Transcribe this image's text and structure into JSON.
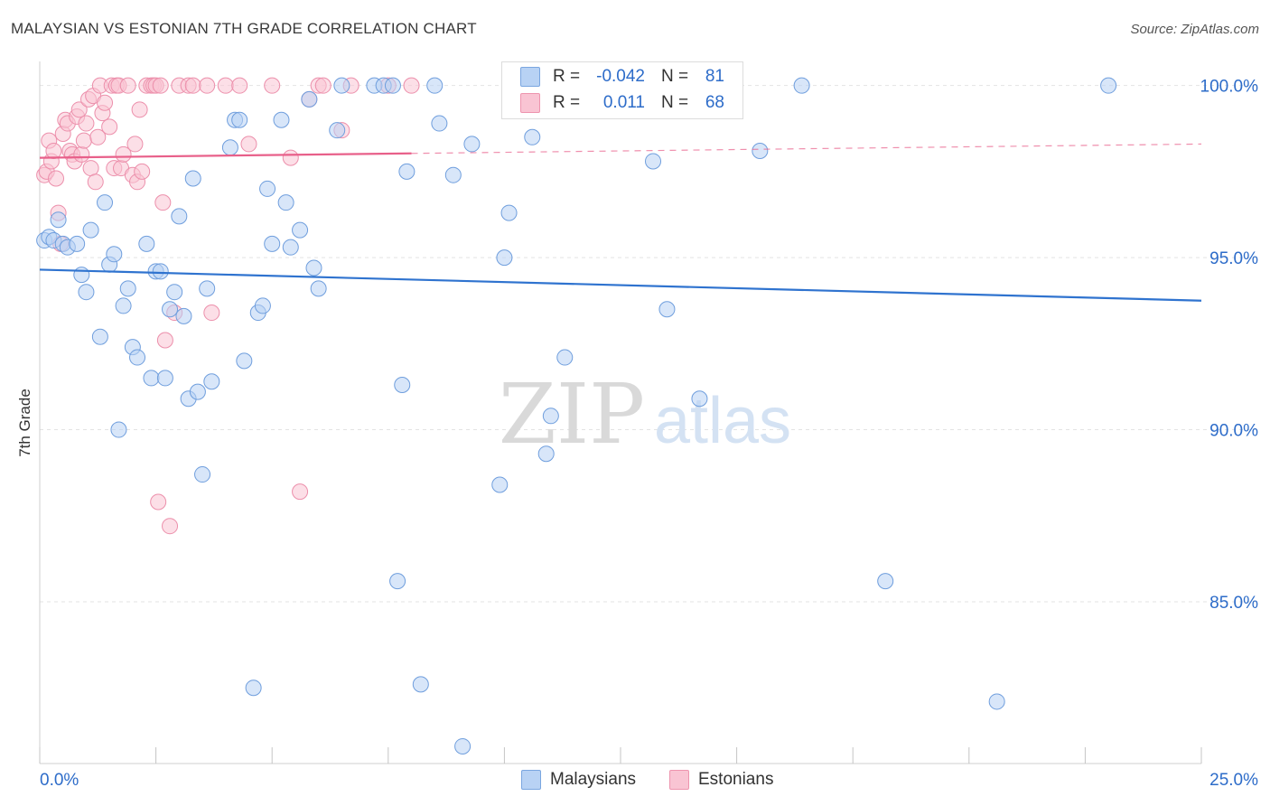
{
  "title": "MALAYSIAN VS ESTONIAN 7TH GRADE CORRELATION CHART",
  "source": "Source: ZipAtlas.com",
  "watermark": {
    "zip": "ZIP",
    "atlas": "atlas"
  },
  "legend_top": {
    "rows": [
      {
        "r_label": "R =",
        "r_value": "-0.042",
        "n_label": "N =",
        "n_value": "81"
      },
      {
        "r_label": "R =",
        "r_value": "0.011",
        "n_label": "N =",
        "n_value": "68"
      }
    ]
  },
  "legend_bottom": {
    "malaysians": "Malaysians",
    "estonians": "Estonians"
  },
  "colors": {
    "malaysians_fill": "#b8d2f4",
    "malaysians_stroke": "#6f9edd",
    "malaysians_line": "#2f73cf",
    "estonians_fill": "#f9c4d3",
    "estonians_stroke": "#ec8fab",
    "estonians_line": "#e8608a",
    "axis_label": "#2d6cc9",
    "grid": "#e3e3e3"
  },
  "chart_data": {
    "type": "scatter",
    "title": "MALAYSIAN VS ESTONIAN 7TH GRADE CORRELATION CHART",
    "xlabel": "",
    "ylabel": "7th Grade",
    "xlim": [
      0,
      25
    ],
    "ylim": [
      80.3,
      100.7
    ],
    "x_tick_labels": [
      "0.0%",
      "25.0%"
    ],
    "y_ticks": [
      85,
      90,
      95,
      100
    ],
    "y_tick_labels": [
      "85.0%",
      "90.0%",
      "95.0%",
      "100.0%"
    ],
    "grid": true,
    "series": [
      {
        "name": "Malaysians",
        "r": -0.042,
        "n": 81,
        "trend": {
          "x": [
            0,
            25
          ],
          "y": [
            94.65,
            93.75
          ]
        },
        "points": [
          [
            0.1,
            95.5
          ],
          [
            0.2,
            95.6
          ],
          [
            0.3,
            95.5
          ],
          [
            0.4,
            96.1
          ],
          [
            0.5,
            95.4
          ],
          [
            0.6,
            95.3
          ],
          [
            0.8,
            95.4
          ],
          [
            0.9,
            94.5
          ],
          [
            1.0,
            94.0
          ],
          [
            1.1,
            95.8
          ],
          [
            1.3,
            92.7
          ],
          [
            1.4,
            96.6
          ],
          [
            1.5,
            94.8
          ],
          [
            1.6,
            95.1
          ],
          [
            1.7,
            90.0
          ],
          [
            1.8,
            93.6
          ],
          [
            1.9,
            94.1
          ],
          [
            2.0,
            92.4
          ],
          [
            2.1,
            92.1
          ],
          [
            2.3,
            95.4
          ],
          [
            2.4,
            91.5
          ],
          [
            2.5,
            94.6
          ],
          [
            2.6,
            94.6
          ],
          [
            2.7,
            91.5
          ],
          [
            2.8,
            93.5
          ],
          [
            2.9,
            94.0
          ],
          [
            3.0,
            96.2
          ],
          [
            3.1,
            93.3
          ],
          [
            3.2,
            90.9
          ],
          [
            3.3,
            97.3
          ],
          [
            3.4,
            91.1
          ],
          [
            3.5,
            88.7
          ],
          [
            3.6,
            94.1
          ],
          [
            3.7,
            91.4
          ],
          [
            4.1,
            98.2
          ],
          [
            4.2,
            99.0
          ],
          [
            4.3,
            99.0
          ],
          [
            4.4,
            92.0
          ],
          [
            4.6,
            82.5
          ],
          [
            4.7,
            93.4
          ],
          [
            4.8,
            93.6
          ],
          [
            4.9,
            97.0
          ],
          [
            5.0,
            95.4
          ],
          [
            5.2,
            99.0
          ],
          [
            5.3,
            96.6
          ],
          [
            5.4,
            95.3
          ],
          [
            5.6,
            95.8
          ],
          [
            5.8,
            99.6
          ],
          [
            5.9,
            94.7
          ],
          [
            6.0,
            94.1
          ],
          [
            6.4,
            98.7
          ],
          [
            6.5,
            100.0
          ],
          [
            7.2,
            100.0
          ],
          [
            7.4,
            100.0
          ],
          [
            7.6,
            100.0
          ],
          [
            7.7,
            85.6
          ],
          [
            7.8,
            91.3
          ],
          [
            7.9,
            97.5
          ],
          [
            8.2,
            82.6
          ],
          [
            8.5,
            100.0
          ],
          [
            8.6,
            98.9
          ],
          [
            8.9,
            97.4
          ],
          [
            9.1,
            80.8
          ],
          [
            9.3,
            98.3
          ],
          [
            9.9,
            88.4
          ],
          [
            10.0,
            95.0
          ],
          [
            10.1,
            96.3
          ],
          [
            10.6,
            98.5
          ],
          [
            10.9,
            89.3
          ],
          [
            11.0,
            90.4
          ],
          [
            11.3,
            92.1
          ],
          [
            11.5,
            100.0
          ],
          [
            13.2,
            97.8
          ],
          [
            13.5,
            93.5
          ],
          [
            13.8,
            100.0
          ],
          [
            14.2,
            90.9
          ],
          [
            15.5,
            98.1
          ],
          [
            16.4,
            100.0
          ],
          [
            18.2,
            85.6
          ],
          [
            20.6,
            82.1
          ],
          [
            23.0,
            100.0
          ]
        ]
      },
      {
        "name": "Estonians",
        "r": 0.011,
        "n": 68,
        "trend": {
          "x": [
            0,
            25
          ],
          "y": [
            97.9,
            98.3
          ]
        },
        "points": [
          [
            0.1,
            97.4
          ],
          [
            0.15,
            97.5
          ],
          [
            0.2,
            98.4
          ],
          [
            0.25,
            97.8
          ],
          [
            0.3,
            98.1
          ],
          [
            0.35,
            97.3
          ],
          [
            0.4,
            96.3
          ],
          [
            0.45,
            95.4
          ],
          [
            0.5,
            98.6
          ],
          [
            0.55,
            99.0
          ],
          [
            0.6,
            98.9
          ],
          [
            0.65,
            98.1
          ],
          [
            0.7,
            98.0
          ],
          [
            0.75,
            97.8
          ],
          [
            0.8,
            99.1
          ],
          [
            0.85,
            99.3
          ],
          [
            0.9,
            98.0
          ],
          [
            0.95,
            98.4
          ],
          [
            1.0,
            98.9
          ],
          [
            1.05,
            99.6
          ],
          [
            1.1,
            97.6
          ],
          [
            1.15,
            99.7
          ],
          [
            1.2,
            97.2
          ],
          [
            1.25,
            98.5
          ],
          [
            1.3,
            100.0
          ],
          [
            1.35,
            99.2
          ],
          [
            1.4,
            99.5
          ],
          [
            1.5,
            98.8
          ],
          [
            1.55,
            100.0
          ],
          [
            1.6,
            97.6
          ],
          [
            1.65,
            100.0
          ],
          [
            1.7,
            100.0
          ],
          [
            1.75,
            97.6
          ],
          [
            1.8,
            98.0
          ],
          [
            1.9,
            100.0
          ],
          [
            2.0,
            97.4
          ],
          [
            2.05,
            98.3
          ],
          [
            2.1,
            97.2
          ],
          [
            2.15,
            99.3
          ],
          [
            2.2,
            97.5
          ],
          [
            2.3,
            100.0
          ],
          [
            2.4,
            100.0
          ],
          [
            2.45,
            100.0
          ],
          [
            2.5,
            100.0
          ],
          [
            2.55,
            87.9
          ],
          [
            2.6,
            100.0
          ],
          [
            2.65,
            96.6
          ],
          [
            2.7,
            92.6
          ],
          [
            2.8,
            87.2
          ],
          [
            2.9,
            93.4
          ],
          [
            3.0,
            100.0
          ],
          [
            3.2,
            100.0
          ],
          [
            3.3,
            100.0
          ],
          [
            3.6,
            100.0
          ],
          [
            3.7,
            93.4
          ],
          [
            4.0,
            100.0
          ],
          [
            4.3,
            100.0
          ],
          [
            4.5,
            98.3
          ],
          [
            5.0,
            100.0
          ],
          [
            5.4,
            97.9
          ],
          [
            5.6,
            88.2
          ],
          [
            5.8,
            99.6
          ],
          [
            6.0,
            100.0
          ],
          [
            6.1,
            100.0
          ],
          [
            6.5,
            98.7
          ],
          [
            6.7,
            100.0
          ],
          [
            7.5,
            100.0
          ],
          [
            8.0,
            100.0
          ]
        ]
      }
    ]
  }
}
